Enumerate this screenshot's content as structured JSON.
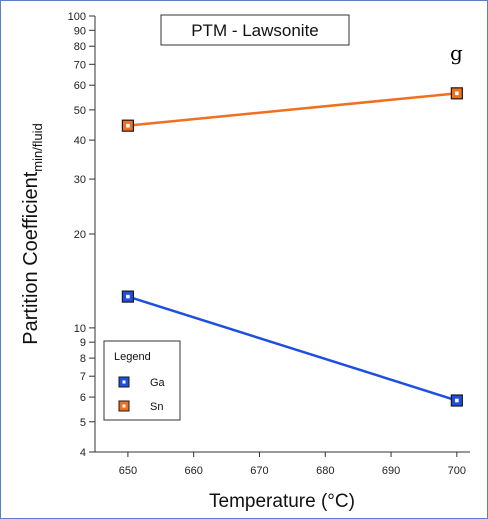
{
  "panel_letter": "g",
  "chart_data": {
    "type": "line",
    "title": "PTM - Lawsonite",
    "xlabel": "Temperature (°C)",
    "ylabel": "Partition Coefficient",
    "ylabel_subscript": "min/fluid",
    "xlim": [
      645,
      702
    ],
    "ylim": [
      4,
      100
    ],
    "y_scale": "log",
    "x_ticks": [
      650,
      660,
      670,
      680,
      690,
      700
    ],
    "y_ticks": [
      4,
      5,
      6,
      7,
      8,
      9,
      10,
      20,
      30,
      40,
      50,
      60,
      70,
      80,
      90,
      100
    ],
    "x": [
      650,
      700
    ],
    "series": [
      {
        "name": "Ga",
        "values": [
          12.6,
          5.85
        ],
        "color": "#1f4fe0",
        "marker": "square"
      },
      {
        "name": "Sn",
        "values": [
          44.5,
          56.5
        ],
        "color": "#f07020",
        "marker": "square"
      }
    ],
    "legend": {
      "title": "Legend",
      "position": "bottom-left"
    }
  }
}
